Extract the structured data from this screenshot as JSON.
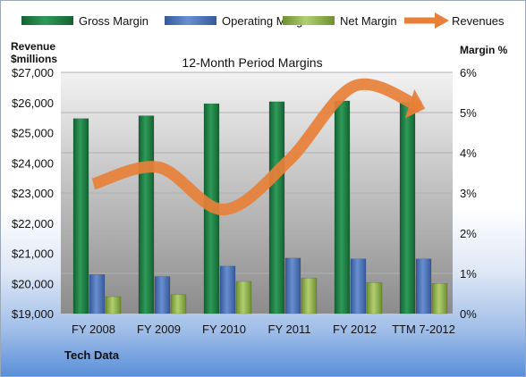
{
  "chart_data": {
    "type": "bar",
    "title": "12-Month Period Margins",
    "categories": [
      "FY 2008",
      "FY 2009",
      "FY 2010",
      "FY 2011",
      "FY 2012",
      "TTM 7-2012"
    ],
    "series": [
      {
        "name": "Gross Margin",
        "axis": "right",
        "values": [
          4.85,
          4.92,
          5.22,
          5.27,
          5.29,
          5.26
        ],
        "color": "#1f7a44"
      },
      {
        "name": "Operating Margin",
        "axis": "right",
        "values": [
          0.97,
          0.92,
          1.18,
          1.38,
          1.36,
          1.36
        ],
        "color": "#4a70b5"
      },
      {
        "name": "Net Margin",
        "axis": "right",
        "values": [
          0.42,
          0.47,
          0.8,
          0.88,
          0.77,
          0.75
        ],
        "color": "#8db04a"
      },
      {
        "name": "Revenues",
        "axis": "left",
        "type": "line",
        "values": [
          23300,
          23850,
          22450,
          24100,
          26550,
          25850
        ],
        "color": "#e8803a"
      }
    ],
    "y_left": {
      "label_line1": "Revenue",
      "label_line2": "$millions",
      "ylim": [
        19000,
        27000
      ],
      "ticks": [
        "$19,000",
        "$20,000",
        "$21,000",
        "$22,000",
        "$23,000",
        "$24,000",
        "$25,000",
        "$26,000",
        "$27,000"
      ]
    },
    "y_right": {
      "label": "Margin %",
      "ylim": [
        0,
        6
      ],
      "ticks": [
        "0%",
        "1%",
        "2%",
        "3%",
        "4%",
        "5%",
        "6%"
      ]
    },
    "grid": true,
    "legend": "top"
  },
  "footer": "Tech Data"
}
